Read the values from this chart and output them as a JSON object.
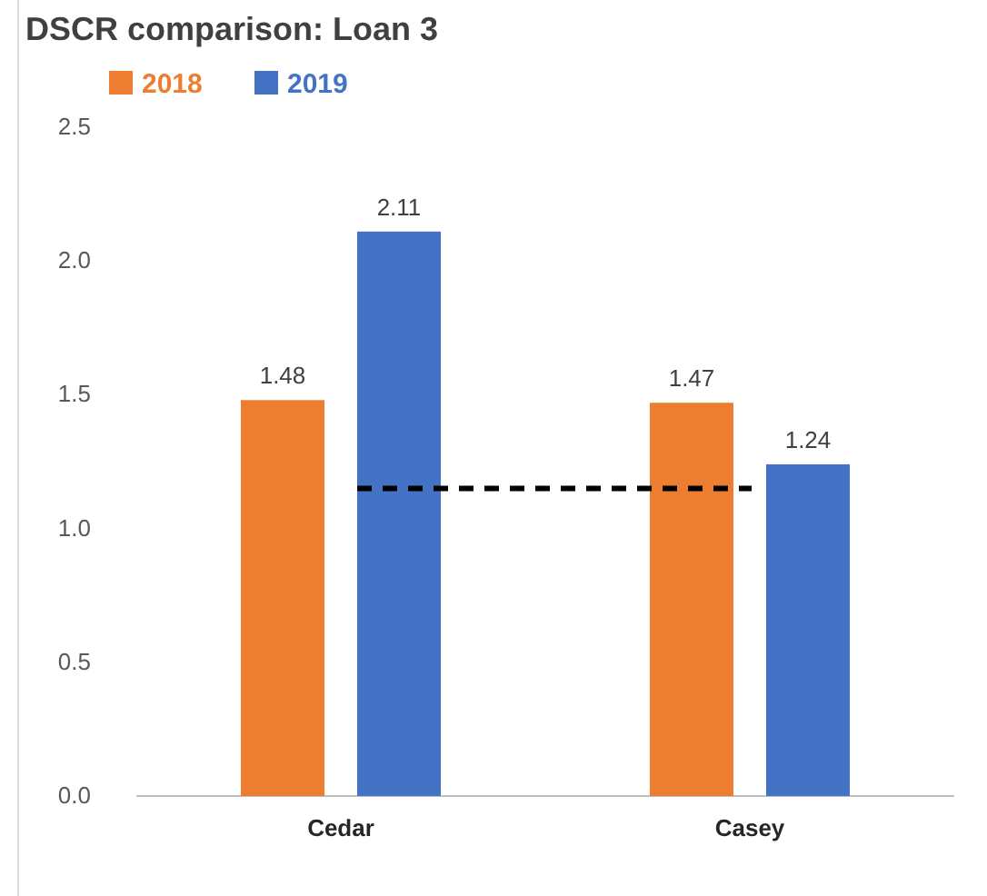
{
  "chart_data": {
    "type": "bar",
    "title": "DSCR comparison: Loan 3",
    "categories": [
      "Cedar",
      "Casey"
    ],
    "series": [
      {
        "name": "2018",
        "color": "#ed7d31",
        "values": [
          1.48,
          1.47
        ]
      },
      {
        "name": "2019",
        "color": "#4472c4",
        "values": [
          2.11,
          1.24
        ]
      }
    ],
    "ylim": [
      0,
      2.5
    ],
    "yticks": [
      {
        "value": 0,
        "label": "0.0"
      },
      {
        "value": 0.5,
        "label": "0.5"
      },
      {
        "value": 1,
        "label": "1.0"
      },
      {
        "value": 1.5,
        "label": "1.5"
      },
      {
        "value": 2,
        "label": "2.0"
      },
      {
        "value": 2.5,
        "label": "2.5"
      }
    ],
    "ref_lines": [
      {
        "axis": "y",
        "value": 1.15,
        "color": "#000000",
        "line_style": "dashed"
      }
    ],
    "data_labels": true,
    "legend": "top left",
    "grid": false
  }
}
